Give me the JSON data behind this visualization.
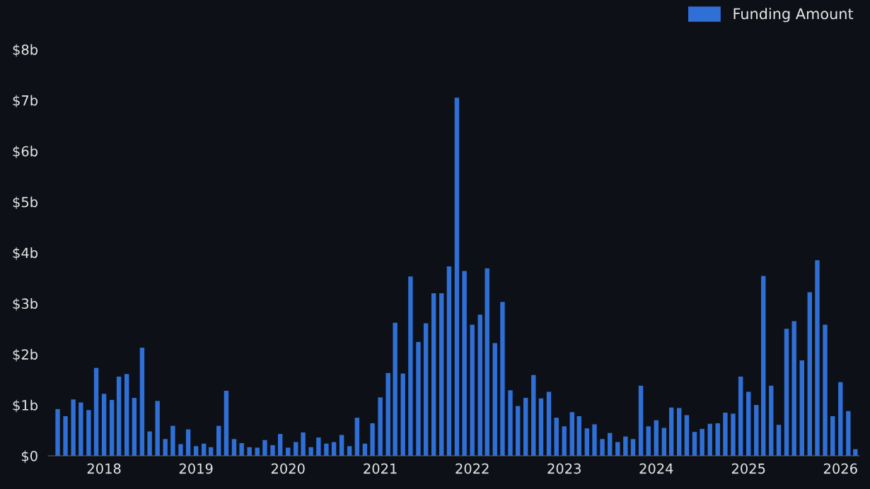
{
  "chart_data": {
    "type": "bar",
    "x": [
      "2017-07",
      "2017-08",
      "2017-09",
      "2017-10",
      "2017-11",
      "2017-12",
      "2018-01",
      "2018-02",
      "2018-03",
      "2018-04",
      "2018-05",
      "2018-06",
      "2018-07",
      "2018-08",
      "2018-09",
      "2018-10",
      "2018-11",
      "2018-12",
      "2019-01",
      "2019-02",
      "2019-03",
      "2019-04",
      "2019-05",
      "2019-06",
      "2019-07",
      "2019-08",
      "2019-09",
      "2019-10",
      "2019-11",
      "2019-12",
      "2020-01",
      "2020-02",
      "2020-03",
      "2020-04",
      "2020-05",
      "2020-06",
      "2020-07",
      "2020-08",
      "2020-09",
      "2020-10",
      "2020-11",
      "2020-12",
      "2021-01",
      "2021-02",
      "2021-03",
      "2021-04",
      "2021-05",
      "2021-06",
      "2021-07",
      "2021-08",
      "2021-09",
      "2021-10",
      "2021-11",
      "2021-12",
      "2022-01",
      "2022-02",
      "2022-03",
      "2022-04",
      "2022-05",
      "2022-06",
      "2022-07",
      "2022-08",
      "2022-09",
      "2022-10",
      "2022-11",
      "2022-12",
      "2023-01",
      "2023-02",
      "2023-03",
      "2023-04",
      "2023-05",
      "2023-06",
      "2023-07",
      "2023-08",
      "2023-09",
      "2023-10",
      "2023-11",
      "2023-12",
      "2024-01",
      "2024-02",
      "2024-03",
      "2024-04",
      "2024-05",
      "2024-06",
      "2024-07",
      "2024-08",
      "2024-09",
      "2024-10",
      "2024-11",
      "2024-12",
      "2025-01",
      "2025-02",
      "2025-03",
      "2025-04",
      "2025-05",
      "2025-06",
      "2025-07",
      "2025-08",
      "2025-09",
      "2025-10",
      "2025-11",
      "2025-12",
      "2026-01",
      "2026-02",
      "2026-03"
    ],
    "series": [
      {
        "name": "Funding Amount",
        "color": "#2f6fd6",
        "values": [
          0.92,
          0.78,
          1.11,
          1.05,
          0.9,
          1.73,
          1.22,
          1.1,
          1.56,
          1.61,
          1.14,
          2.13,
          0.48,
          1.08,
          0.33,
          0.59,
          0.23,
          0.52,
          0.19,
          0.24,
          0.17,
          0.59,
          1.28,
          0.33,
          0.25,
          0.17,
          0.16,
          0.31,
          0.21,
          0.43,
          0.16,
          0.27,
          0.46,
          0.17,
          0.36,
          0.24,
          0.27,
          0.41,
          0.19,
          0.75,
          0.24,
          0.64,
          1.15,
          1.63,
          2.62,
          1.62,
          3.53,
          2.24,
          2.61,
          3.2,
          3.2,
          3.73,
          7.05,
          3.64,
          2.58,
          2.78,
          3.69,
          2.22,
          3.03,
          1.29,
          0.98,
          1.14,
          1.59,
          1.13,
          1.26,
          0.75,
          0.58,
          0.86,
          0.78,
          0.54,
          0.62,
          0.33,
          0.45,
          0.27,
          0.38,
          0.33,
          1.38,
          0.58,
          0.7,
          0.55,
          0.95,
          0.94,
          0.8,
          0.47,
          0.53,
          0.63,
          0.64,
          0.85,
          0.83,
          1.56,
          1.26,
          1.0,
          3.54,
          1.38,
          0.61,
          2.5,
          2.65,
          1.88,
          3.22,
          3.85,
          2.58,
          0.78,
          1.45,
          0.88,
          0.13
        ]
      }
    ],
    "xlim": [
      "2017-05-24",
      "2026-03-17"
    ],
    "xticks": [
      {
        "value": "2018-01-01",
        "label": "2018"
      },
      {
        "value": "2019-01-01",
        "label": "2019"
      },
      {
        "value": "2020-01-01",
        "label": "2020"
      },
      {
        "value": "2021-01-01",
        "label": "2021"
      },
      {
        "value": "2022-01-01",
        "label": "2022"
      },
      {
        "value": "2023-01-01",
        "label": "2023"
      },
      {
        "value": "2024-01-01",
        "label": "2024"
      },
      {
        "value": "2025-01-01",
        "label": "2025"
      },
      {
        "value": "2026-01-01",
        "label": "2026"
      }
    ],
    "ylim": [
      0,
      8
    ],
    "yticks": [
      {
        "value": 0,
        "label": "$0"
      },
      {
        "value": 1,
        "label": "$1b"
      },
      {
        "value": 2,
        "label": "$2b"
      },
      {
        "value": 3,
        "label": "$3b"
      },
      {
        "value": 4,
        "label": "$4b"
      },
      {
        "value": 5,
        "label": "$5b"
      },
      {
        "value": 6,
        "label": "$6b"
      },
      {
        "value": 7,
        "label": "$7b"
      },
      {
        "value": 8,
        "label": "$8b"
      }
    ],
    "grid": false,
    "legend": "top right"
  }
}
